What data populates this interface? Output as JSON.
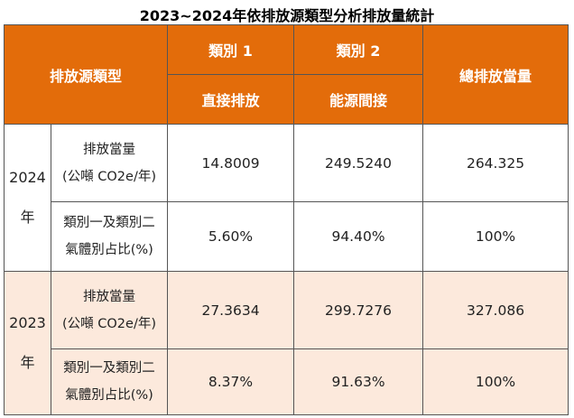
{
  "title": "2023~2024年依排放源類型分析排放量統計",
  "header": {
    "source_type": "排放源類型",
    "category1": "類別 1",
    "category1_sub": "直接排放",
    "category2": "類別 2",
    "category2_sub": "能源間接",
    "total": "總排放當量"
  },
  "rows": [
    {
      "year": "2024",
      "year_suffix": "年",
      "emission_label_line1": "排放當量",
      "emission_label_line2": "(公噸 CO2e/年)",
      "emission_cat1": "14.8009",
      "emission_cat2": "249.5240",
      "emission_total": "264.325",
      "ratio_label_line1": "類別一及類別二",
      "ratio_label_line2": "氣體別占比(%)",
      "ratio_cat1": "5.60%",
      "ratio_cat2": "94.40%",
      "ratio_total": "100%"
    },
    {
      "year": "2023",
      "year_suffix": "年",
      "emission_label_line1": "排放當量",
      "emission_label_line2": "(公噸 CO2e/年)",
      "emission_cat1": "27.3634",
      "emission_cat2": "299.7276",
      "emission_total": "327.086",
      "ratio_label_line1": "類別一及類別二",
      "ratio_label_line2": "氣體別占比(%)",
      "ratio_cat1": "8.37%",
      "ratio_cat2": "91.63%",
      "ratio_total": "100%"
    }
  ],
  "colors": {
    "header_bg": "#e36c0a",
    "header_text": "#ffffff",
    "row2023_bg": "#fce9dc"
  }
}
